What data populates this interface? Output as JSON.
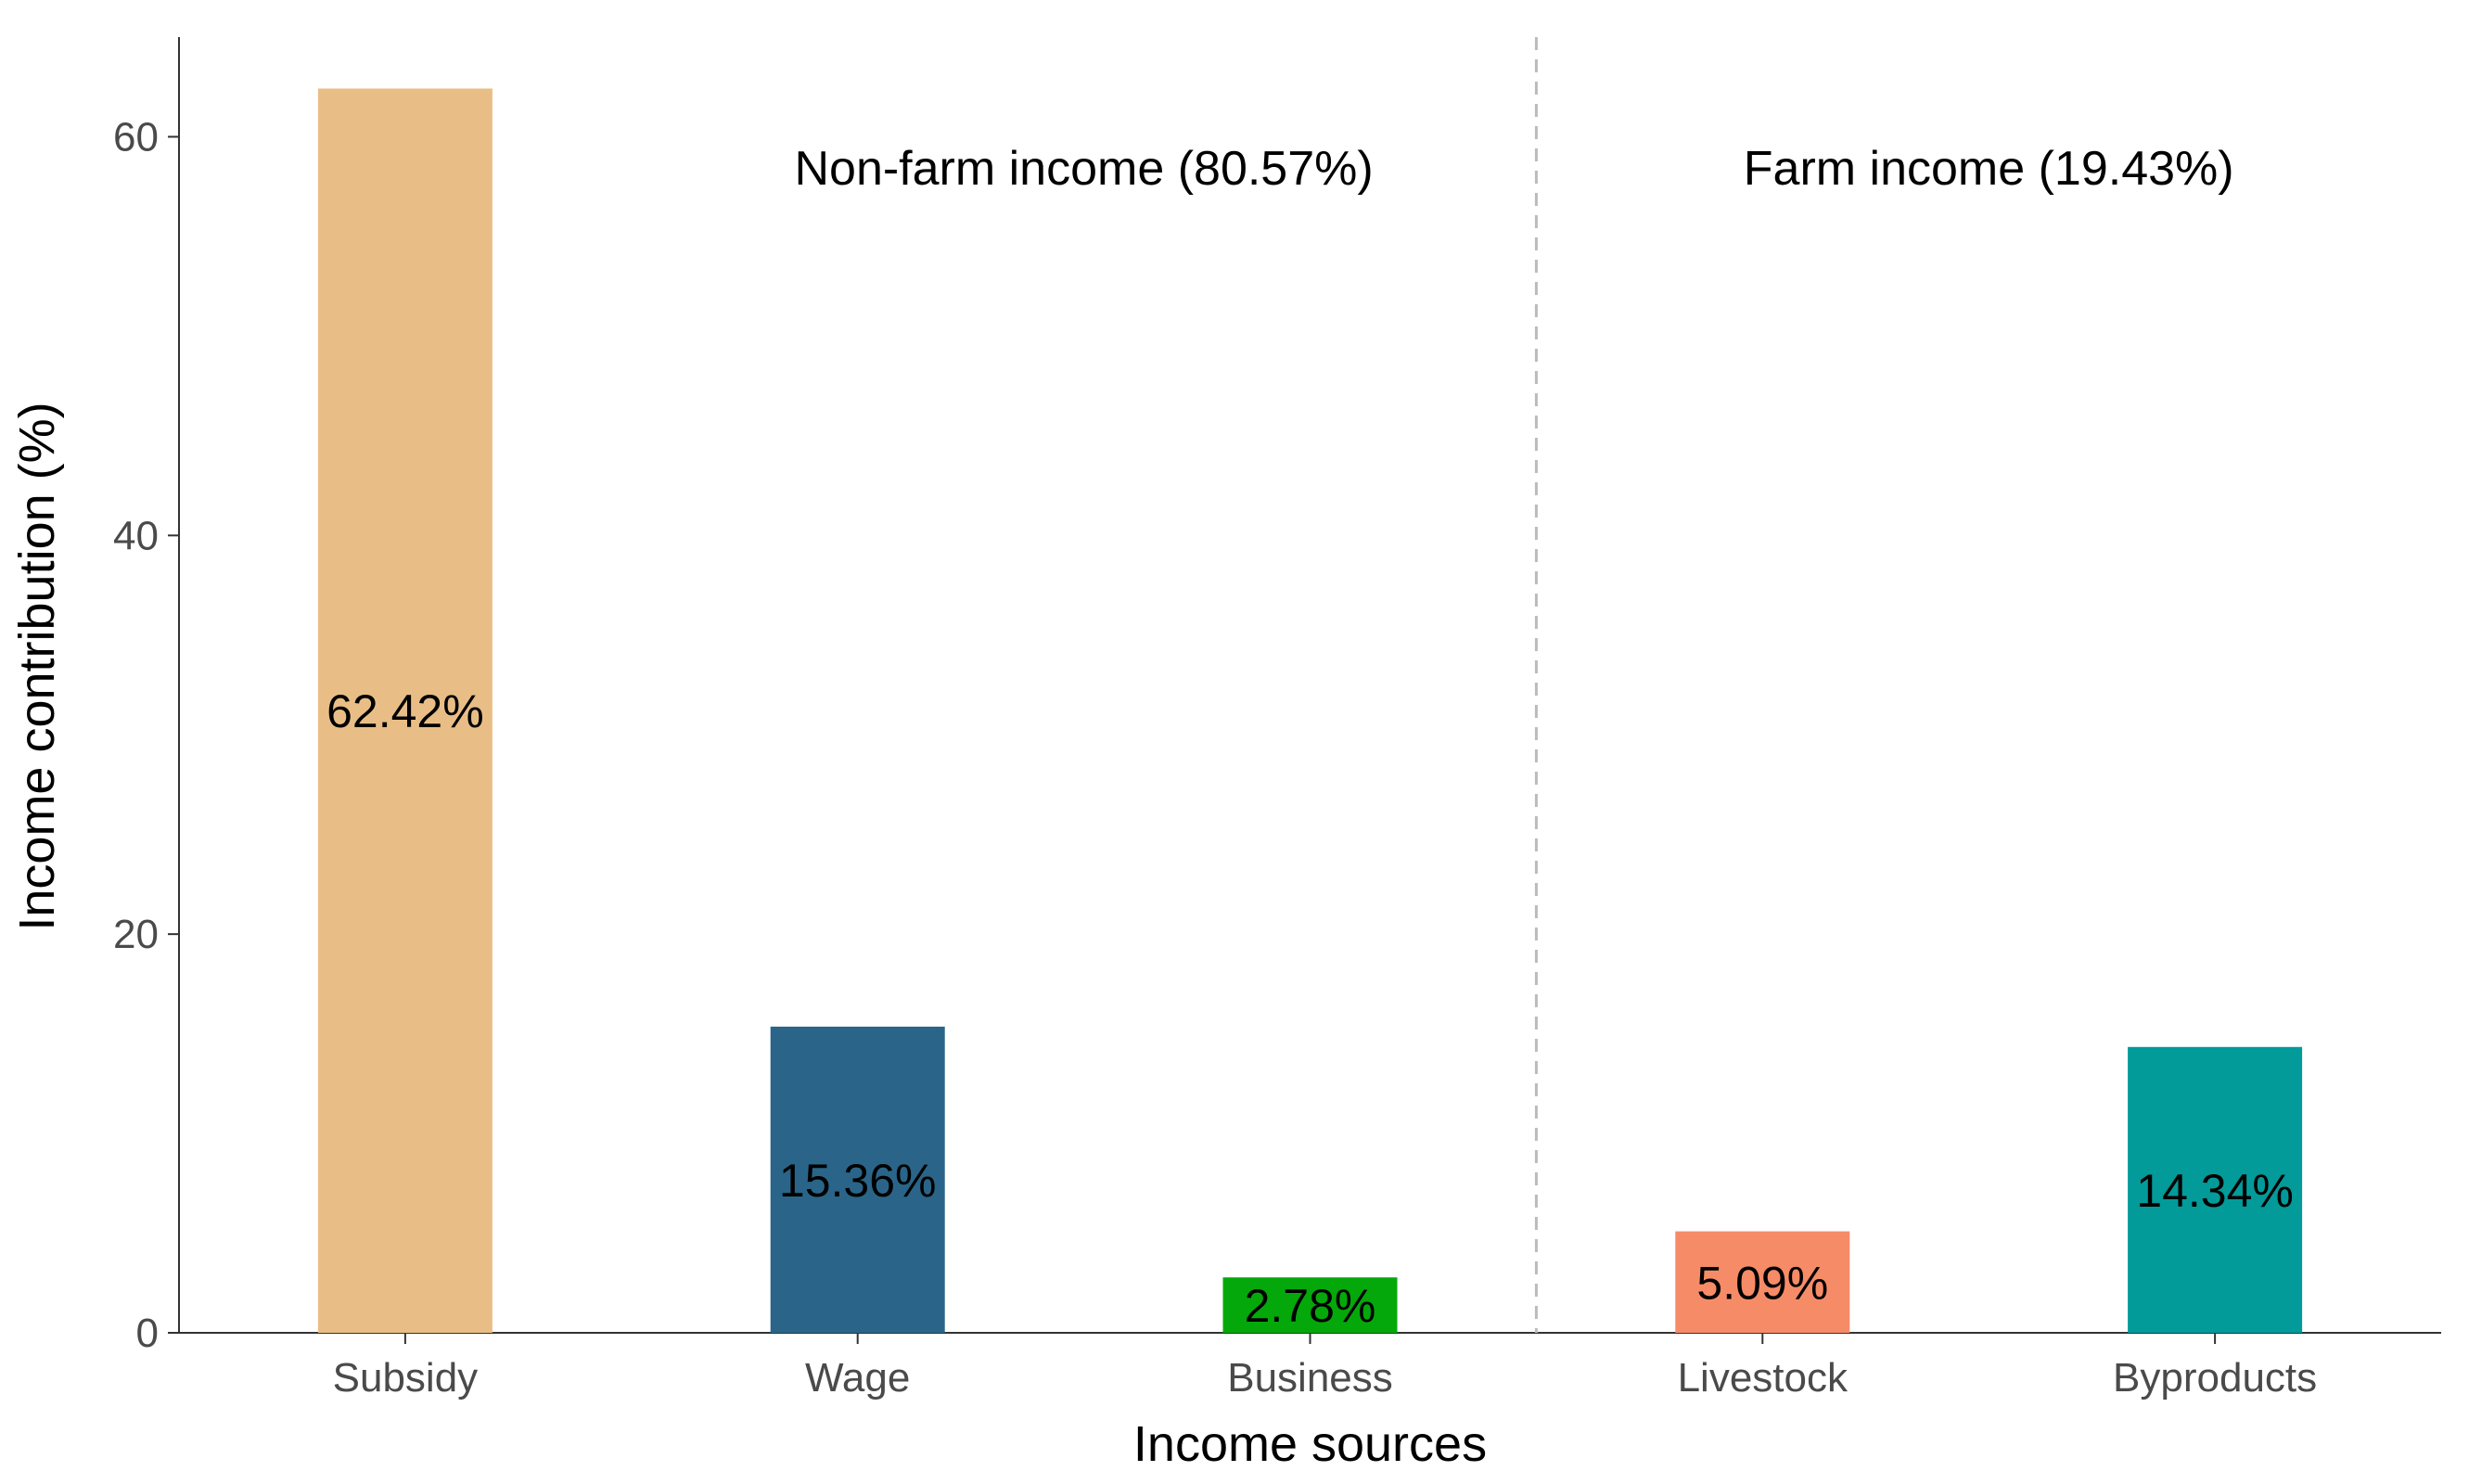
{
  "chart_data": {
    "type": "bar",
    "title": "",
    "xlabel": "Income sources",
    "ylabel": "Income contribution (%)",
    "ylim": [
      0,
      65
    ],
    "yticks": [
      0,
      20,
      40,
      60
    ],
    "grid": false,
    "categories": [
      "Subsidy",
      "Wage",
      "Business",
      "Livestock",
      "Byproducts"
    ],
    "values": [
      62.42,
      15.36,
      2.78,
      5.09,
      14.34
    ],
    "value_labels": [
      "62.42%",
      "15.36%",
      "2.78%",
      "5.09%",
      "14.34%"
    ],
    "colors": [
      "#E9BE86",
      "#2A6589",
      "#04A80A",
      "#F68B68",
      "#039A9A"
    ],
    "annotations": [
      {
        "text": "Non-farm income (80.57%)",
        "group": "non-farm"
      },
      {
        "text": "Farm income (19.43%)",
        "group": "farm"
      }
    ],
    "divider": {
      "style": "dashed",
      "color": "#bbbbbb",
      "between": [
        "Business",
        "Livestock"
      ]
    }
  }
}
